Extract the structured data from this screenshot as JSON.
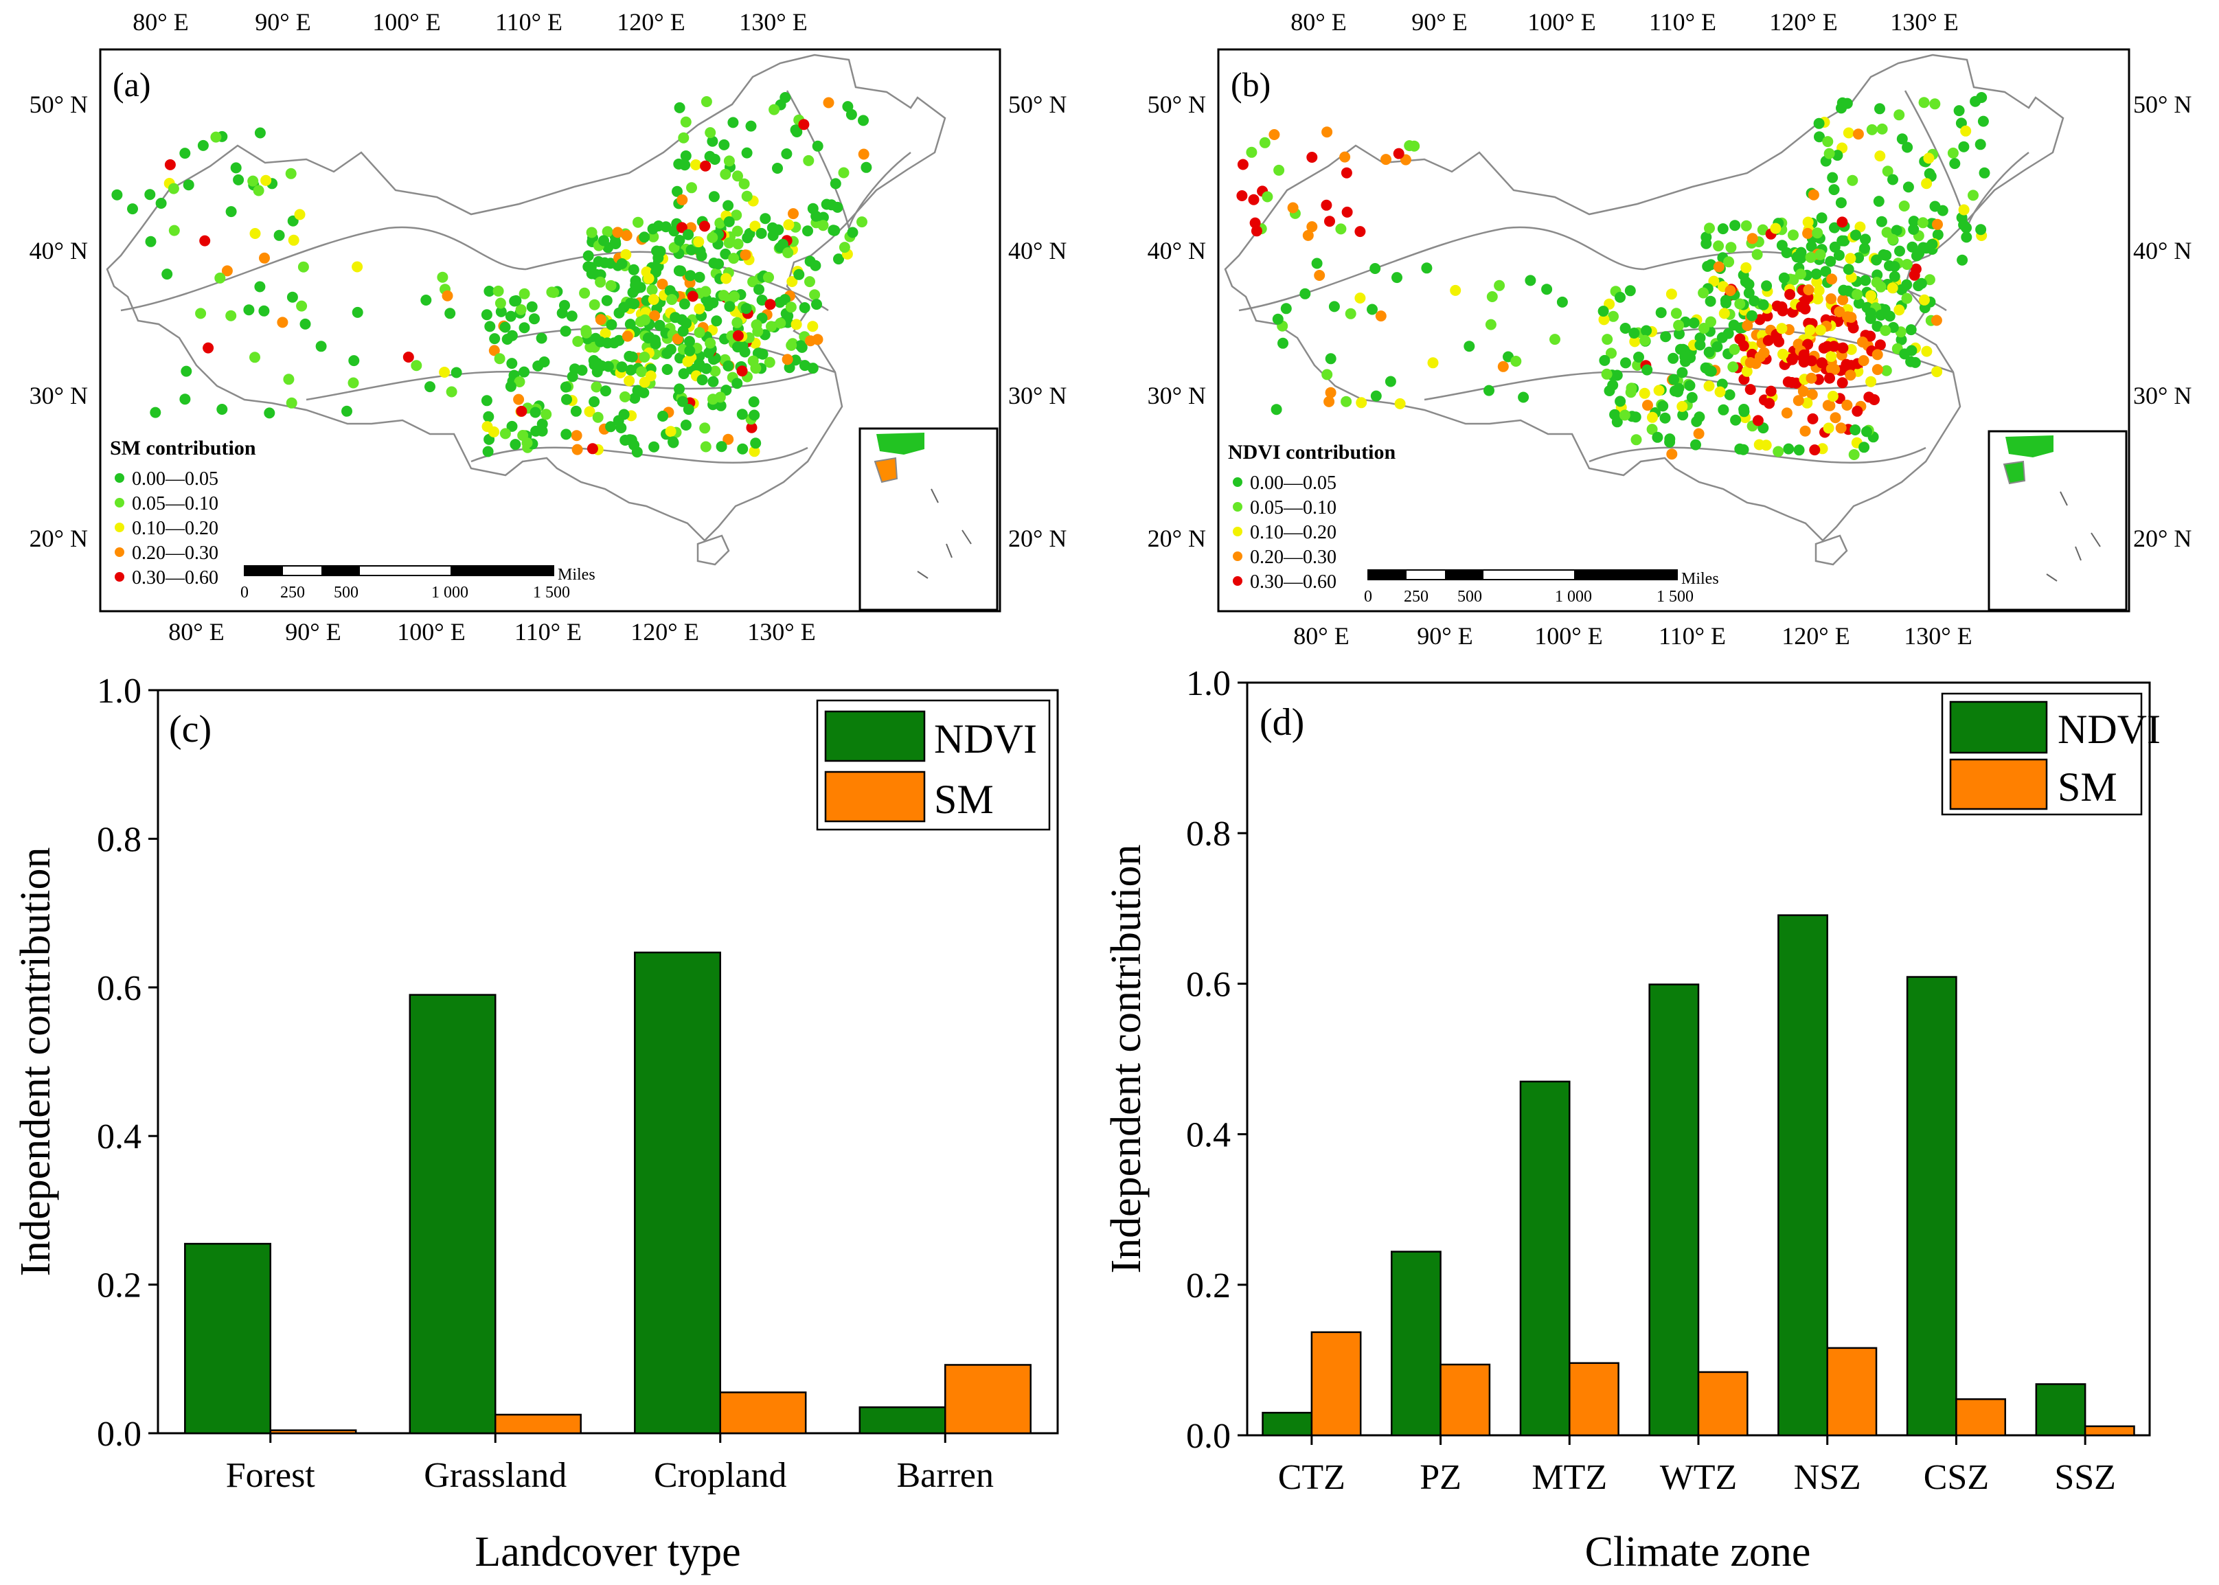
{
  "colors": {
    "ndvi": "#0a7d0a",
    "sm": "#ff8000",
    "class1": "#22c322",
    "class2": "#66e626",
    "class3": "#f2f200",
    "class4": "#ff8c00",
    "class5": "#e60000"
  },
  "maps": {
    "lon_ticks": [
      "80° E",
      "90° E",
      "100° E",
      "110° E",
      "120° E",
      "130° E"
    ],
    "lat_ticks": [
      "50° N",
      "40° N",
      "30° N",
      "20° N"
    ],
    "scalebar": {
      "unit": "Miles",
      "labels": [
        "0",
        "250",
        "500",
        "1 000",
        "1 500"
      ]
    },
    "legend_classes": [
      "0.00—0.05",
      "0.05—0.10",
      "0.10—0.20",
      "0.20—0.30",
      "0.30—0.60"
    ],
    "a": {
      "panel_label": "(a)",
      "legend_title": "SM contribution"
    },
    "b": {
      "panel_label": "(b)",
      "legend_title": "NDVI contribution"
    }
  },
  "chart_data": [
    {
      "panel_label": "(c)",
      "type": "bar",
      "xlabel": "Landcover type",
      "ylabel": "Independent contribution",
      "ylim": [
        0,
        1.0
      ],
      "yticks": [
        "0.0",
        "0.2",
        "0.4",
        "0.6",
        "0.8",
        "1.0"
      ],
      "yticks_values": [
        0,
        0.2,
        0.4,
        0.6,
        0.8,
        1.0
      ],
      "categories": [
        "Forest",
        "Grassland",
        "Cropland",
        "Barren"
      ],
      "series": [
        {
          "name": "NDVI",
          "values": [
            0.255,
            0.59,
            0.647,
            0.035
          ]
        },
        {
          "name": "SM",
          "values": [
            0.004,
            0.025,
            0.055,
            0.092
          ]
        }
      ],
      "legend_position": "top-right"
    },
    {
      "panel_label": "(d)",
      "type": "bar",
      "xlabel": "Climate zone",
      "ylabel": "Independent contribution",
      "ylim": [
        0,
        1.0
      ],
      "yticks": [
        "0.0",
        "0.2",
        "0.4",
        "0.6",
        "0.8",
        "1.0"
      ],
      "yticks_values": [
        0,
        0.2,
        0.4,
        0.6,
        0.8,
        1.0
      ],
      "categories": [
        "CTZ",
        "PZ",
        "MTZ",
        "WTZ",
        "NSZ",
        "CSZ",
        "SSZ"
      ],
      "series": [
        {
          "name": "NDVI",
          "values": [
            0.03,
            0.244,
            0.47,
            0.599,
            0.691,
            0.609,
            0.068
          ]
        },
        {
          "name": "SM",
          "values": [
            0.137,
            0.094,
            0.096,
            0.084,
            0.116,
            0.048,
            0.012
          ]
        }
      ],
      "legend_position": "top-right"
    }
  ]
}
